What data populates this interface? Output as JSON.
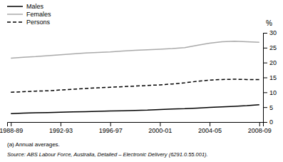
{
  "chart_data": {
    "type": "line",
    "ylabel": "%",
    "categories": [
      "1988-89",
      null,
      null,
      null,
      "1992-93",
      null,
      null,
      null,
      "1996-97",
      null,
      null,
      null,
      "2000-01",
      null,
      null,
      null,
      "2004-05",
      null,
      null,
      null,
      "2008-09"
    ],
    "series": [
      {
        "name": "Males",
        "color": "#000000",
        "line_style": "solid",
        "values": [
          2.8,
          3.0,
          3.1,
          3.2,
          3.3,
          3.4,
          3.5,
          3.6,
          3.7,
          3.8,
          3.9,
          4.0,
          4.2,
          4.4,
          4.5,
          4.7,
          4.9,
          5.1,
          5.3,
          5.5,
          5.8
        ]
      },
      {
        "name": "Females",
        "color": "#aaaaaa",
        "line_style": "solid",
        "values": [
          21.5,
          21.8,
          22.0,
          22.3,
          22.6,
          22.9,
          23.2,
          23.4,
          23.6,
          23.9,
          24.1,
          24.3,
          24.5,
          24.7,
          25.0,
          25.8,
          26.5,
          27.0,
          27.2,
          27.0,
          26.8
        ]
      },
      {
        "name": "Persons",
        "color": "#000000",
        "line_style": "dashed",
        "values": [
          10.0,
          10.2,
          10.4,
          10.5,
          10.8,
          11.0,
          11.3,
          11.5,
          11.7,
          11.9,
          12.1,
          12.3,
          12.5,
          12.8,
          13.2,
          13.7,
          14.1,
          14.3,
          14.4,
          14.3,
          14.3
        ]
      }
    ],
    "ylim": [
      0,
      30
    ],
    "yticks": [
      0,
      5,
      10,
      15,
      20,
      25,
      30
    ],
    "grid": false,
    "legend": "top-left",
    "annotations": [
      "(a) Annual averages.",
      "Source: ABS Labour Force, Australia, Detailed – Electronic Delivery (6291.0.55.001)."
    ]
  }
}
